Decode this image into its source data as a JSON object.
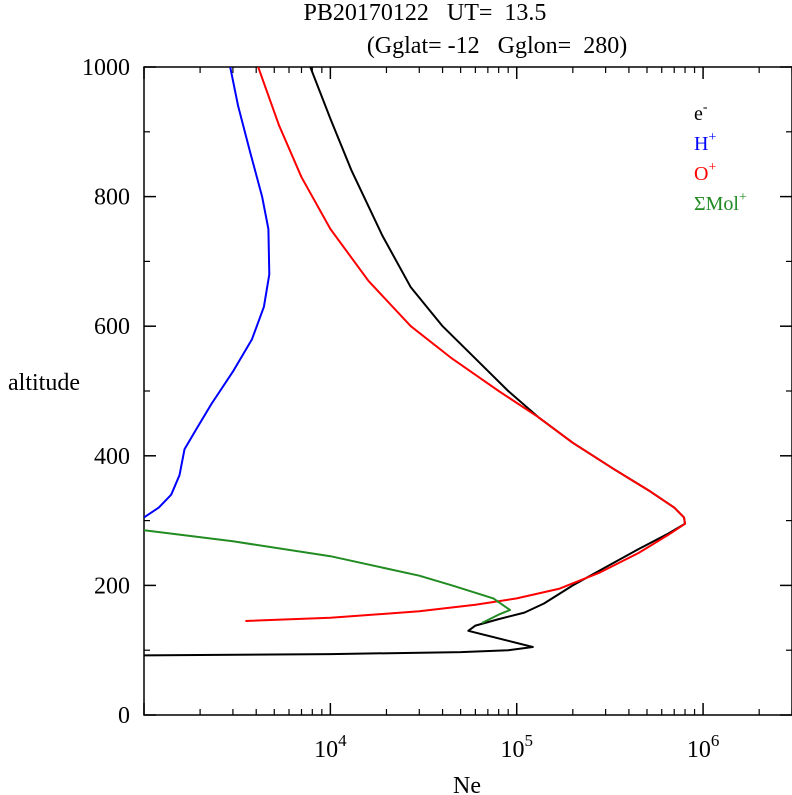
{
  "chart_data": {
    "type": "line",
    "title_line1": "PB20170122   UT=  13.5",
    "title_line2": "(Gglat= -12   Gglon=  280)",
    "xlabel": "Ne",
    "ylabel": "altitude",
    "x_scale": "log",
    "xlim": [
      1000,
      3000000
    ],
    "ylim": [
      0,
      1000
    ],
    "x_ticks": [
      {
        "base": "10",
        "exp": "4",
        "value": 10000
      },
      {
        "base": "10",
        "exp": "5",
        "value": 100000
      },
      {
        "base": "10",
        "exp": "6",
        "value": 1000000
      }
    ],
    "y_ticks": [
      "0",
      "200",
      "400",
      "600",
      "800",
      "1000"
    ],
    "y_tick_values": [
      0,
      200,
      400,
      600,
      800,
      1000
    ],
    "grid": false,
    "legend_position": "top-right",
    "legend": [
      {
        "base": "e",
        "sup": "-",
        "color": "#000000"
      },
      {
        "base": "H",
        "sup": "+",
        "color": "#0000ff"
      },
      {
        "base": "O",
        "sup": "+",
        "color": "#ff0000"
      },
      {
        "base": "ΣMol",
        "sup": "+",
        "color": "#228b22"
      }
    ],
    "series": [
      {
        "name": "e-",
        "color": "#000000",
        "points": [
          [
            1000,
            92
          ],
          [
            10000,
            94
          ],
          [
            50000,
            97
          ],
          [
            90000,
            100
          ],
          [
            122000,
            105
          ],
          [
            55000,
            130
          ],
          [
            60000,
            138
          ],
          [
            80000,
            148
          ],
          [
            110000,
            158
          ],
          [
            140000,
            172
          ],
          [
            200000,
            200
          ],
          [
            300000,
            228
          ],
          [
            450000,
            256
          ],
          [
            650000,
            280
          ],
          [
            800000,
            295
          ],
          [
            790000,
            305
          ],
          [
            700000,
            320
          ],
          [
            520000,
            345
          ],
          [
            330000,
            380
          ],
          [
            200000,
            420
          ],
          [
            130000,
            460
          ],
          [
            90000,
            500
          ],
          [
            60000,
            550
          ],
          [
            40000,
            600
          ],
          [
            27000,
            660
          ],
          [
            19000,
            740
          ],
          [
            13000,
            840
          ],
          [
            10000,
            920
          ],
          [
            7800,
            1000
          ]
        ]
      },
      {
        "name": "H+",
        "color": "#0000ff",
        "points": [
          [
            1000,
            305
          ],
          [
            1200,
            320
          ],
          [
            1400,
            340
          ],
          [
            1550,
            370
          ],
          [
            1650,
            410
          ],
          [
            1900,
            440
          ],
          [
            2300,
            480
          ],
          [
            3000,
            530
          ],
          [
            3800,
            580
          ],
          [
            4400,
            630
          ],
          [
            4700,
            680
          ],
          [
            4650,
            750
          ],
          [
            4300,
            800
          ],
          [
            3700,
            870
          ],
          [
            3200,
            940
          ],
          [
            2900,
            1000
          ]
        ]
      },
      {
        "name": "O+",
        "color": "#ff0000",
        "points": [
          [
            3500,
            145
          ],
          [
            10000,
            150
          ],
          [
            30000,
            160
          ],
          [
            60000,
            170
          ],
          [
            100000,
            180
          ],
          [
            170000,
            195
          ],
          [
            280000,
            220
          ],
          [
            450000,
            250
          ],
          [
            650000,
            278
          ],
          [
            800000,
            295
          ],
          [
            790000,
            305
          ],
          [
            700000,
            320
          ],
          [
            520000,
            345
          ],
          [
            330000,
            380
          ],
          [
            200000,
            420
          ],
          [
            130000,
            460
          ],
          [
            80000,
            500
          ],
          [
            45000,
            550
          ],
          [
            27000,
            600
          ],
          [
            16000,
            670
          ],
          [
            10000,
            750
          ],
          [
            7000,
            830
          ],
          [
            5300,
            910
          ],
          [
            4100,
            1000
          ]
        ]
      },
      {
        "name": "ΣMol+",
        "color": "#228b22",
        "points": [
          [
            1000,
            285
          ],
          [
            3000,
            268
          ],
          [
            10000,
            245
          ],
          [
            30000,
            215
          ],
          [
            45000,
            200
          ],
          [
            75000,
            180
          ],
          [
            92000,
            162
          ],
          [
            80000,
            155
          ],
          [
            65000,
            142
          ]
        ]
      }
    ]
  }
}
